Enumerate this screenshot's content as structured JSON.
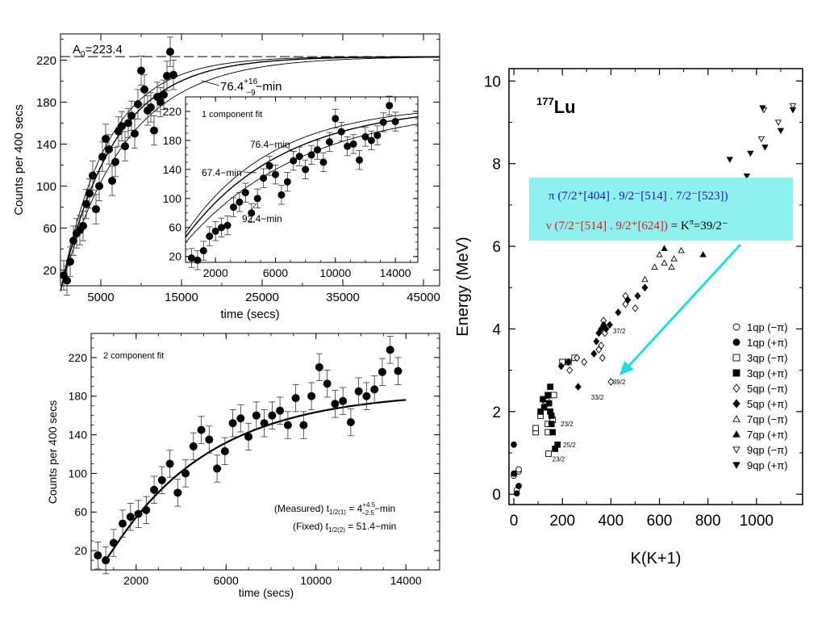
{
  "chart_data": [
    {
      "id": "top-left",
      "type": "scatter",
      "xlabel": "time (secs)",
      "ylabel": "Counts per 400 secs",
      "xlim": [
        0,
        47000
      ],
      "ylim": [
        5,
        245
      ],
      "xticks": [
        5000,
        15000,
        25000,
        35000,
        45000
      ],
      "yticks": [
        20,
        60,
        100,
        140,
        180,
        220
      ],
      "a0_label": "A",
      "a0_sub": "0",
      "a0_value": "=223.4",
      "a0": 223.4,
      "halflife_label": "76.4",
      "halflife_sup": "+16",
      "halflife_sub": "−9",
      "halflife_unit": "−min",
      "curves_halflife_min": [
        67.4,
        76.4,
        92.4
      ],
      "points": [
        [
          400,
          15
        ],
        [
          800,
          10
        ],
        [
          1200,
          28
        ],
        [
          1600,
          48
        ],
        [
          2000,
          55
        ],
        [
          2400,
          58
        ],
        [
          2800,
          62
        ],
        [
          3200,
          83
        ],
        [
          3600,
          93
        ],
        [
          4000,
          110
        ],
        [
          4400,
          78
        ],
        [
          4800,
          100
        ],
        [
          5200,
          128
        ],
        [
          5600,
          145
        ],
        [
          6000,
          135
        ],
        [
          6400,
          105
        ],
        [
          6800,
          123
        ],
        [
          7200,
          152
        ],
        [
          7600,
          157
        ],
        [
          8000,
          138
        ],
        [
          8400,
          160
        ],
        [
          8800,
          167
        ],
        [
          9200,
          150
        ],
        [
          9600,
          178
        ],
        [
          10000,
          210
        ],
        [
          10400,
          192
        ],
        [
          10800,
          172
        ],
        [
          11200,
          175
        ],
        [
          11600,
          153
        ],
        [
          12000,
          185
        ],
        [
          12400,
          180
        ],
        [
          12800,
          187
        ],
        [
          13200,
          205
        ],
        [
          13600,
          228
        ],
        [
          14000,
          206
        ]
      ],
      "errors": 14
    },
    {
      "id": "inset",
      "type": "scatter",
      "title": "1 component fit",
      "xlim": [
        0,
        15500
      ],
      "ylim": [
        12,
        240
      ],
      "xticks": [
        2000,
        6000,
        10000,
        14000
      ],
      "yticks": [
        20,
        60,
        100,
        140,
        180,
        220
      ],
      "curve_labels": [
        "76.4−min",
        "67.4−min",
        "92.4−min"
      ],
      "curves_halflife_min": [
        67.4,
        76.4,
        92.4
      ],
      "points": [
        [
          400,
          18
        ],
        [
          800,
          15
        ],
        [
          1200,
          28
        ],
        [
          1600,
          48
        ],
        [
          2000,
          55
        ],
        [
          2400,
          60
        ],
        [
          2800,
          63
        ],
        [
          3200,
          88
        ],
        [
          3600,
          95
        ],
        [
          4000,
          108
        ],
        [
          4400,
          80
        ],
        [
          4800,
          100
        ],
        [
          5200,
          128
        ],
        [
          5600,
          145
        ],
        [
          6000,
          133
        ],
        [
          6400,
          105
        ],
        [
          6800,
          123
        ],
        [
          7200,
          152
        ],
        [
          7600,
          158
        ],
        [
          8000,
          140
        ],
        [
          8400,
          160
        ],
        [
          8800,
          167
        ],
        [
          9200,
          150
        ],
        [
          9600,
          178
        ],
        [
          10000,
          210
        ],
        [
          10400,
          192
        ],
        [
          10800,
          172
        ],
        [
          11200,
          175
        ],
        [
          11600,
          153
        ],
        [
          12000,
          185
        ],
        [
          12400,
          180
        ],
        [
          12800,
          187
        ],
        [
          13200,
          205
        ],
        [
          13600,
          228
        ],
        [
          14000,
          206
        ]
      ],
      "errors": 13
    },
    {
      "id": "bottom-left",
      "type": "scatter",
      "title": "2 component fit",
      "xlabel": "time (secs)",
      "ylabel": "Counts per 400 secs",
      "xlim": [
        0,
        15500
      ],
      "ylim": [
        0,
        245
      ],
      "xticks": [
        2000,
        6000,
        10000,
        14000
      ],
      "yticks": [
        20,
        60,
        100,
        140,
        180,
        220
      ],
      "note1_prefix": "(Measured) t",
      "note1_sub": "1/2(1)",
      "note1_eq": " = 4",
      "note1_sup": "+4.5",
      "note1_sub2": "−2.5",
      "note1_suffix": "−min",
      "note2_prefix": "(Fixed) t",
      "note2_sub": "1/2(2)",
      "note2_suffix": " = 51.4−min",
      "points": [
        [
          300,
          15
        ],
        [
          650,
          10
        ],
        [
          1000,
          28
        ],
        [
          1400,
          48
        ],
        [
          1750,
          55
        ],
        [
          2100,
          58
        ],
        [
          2450,
          62
        ],
        [
          2800,
          83
        ],
        [
          3150,
          93
        ],
        [
          3500,
          110
        ],
        [
          3850,
          80
        ],
        [
          4200,
          100
        ],
        [
          4550,
          128
        ],
        [
          4900,
          145
        ],
        [
          5250,
          135
        ],
        [
          5600,
          105
        ],
        [
          5950,
          123
        ],
        [
          6300,
          152
        ],
        [
          6650,
          157
        ],
        [
          7000,
          138
        ],
        [
          7350,
          160
        ],
        [
          7700,
          152
        ],
        [
          8050,
          160
        ],
        [
          8400,
          165
        ],
        [
          8750,
          150
        ],
        [
          9100,
          178
        ],
        [
          9450,
          150
        ],
        [
          9800,
          180
        ],
        [
          10150,
          210
        ],
        [
          10500,
          193
        ],
        [
          10850,
          172
        ],
        [
          11200,
          175
        ],
        [
          11550,
          153
        ],
        [
          11900,
          185
        ],
        [
          12250,
          180
        ],
        [
          12600,
          187
        ],
        [
          12950,
          205
        ],
        [
          13300,
          228
        ],
        [
          13650,
          206
        ]
      ],
      "errors": 14
    },
    {
      "id": "right",
      "type": "scatter",
      "title_sup": "177",
      "title": "Lu",
      "xlabel": "K(K+1)",
      "ylabel": "Energy (MeV)",
      "xlim": [
        -20,
        1190
      ],
      "ylim": [
        -0.25,
        10.3
      ],
      "xticks": [
        0,
        200,
        400,
        600,
        800,
        1000
      ],
      "yticks": [
        0,
        2,
        4,
        6,
        8,
        10
      ],
      "legend": [
        {
          "label": "1qp  (−π)",
          "marker": "circle-open"
        },
        {
          "label": "1qp  (+π)",
          "marker": "circle-filled"
        },
        {
          "label": "3qp  (−π)",
          "marker": "square-open"
        },
        {
          "label": "3qp  (+π)",
          "marker": "square-filled"
        },
        {
          "label": "5qp  (−π)",
          "marker": "diamond-open"
        },
        {
          "label": "5qp  (+π)",
          "marker": "diamond-filled"
        },
        {
          "label": "7qp  (−π)",
          "marker": "triangle-open"
        },
        {
          "label": "7qp  (+π)",
          "marker": "triangle-filled"
        },
        {
          "label": "9qp  (−π)",
          "marker": "triangle-down-open"
        },
        {
          "label": "9qp  (+π)",
          "marker": "triangle-down-filled"
        }
      ],
      "legend_position": "bottom-right",
      "box_line1": "π (7/2⁺[404] . 9/2⁻[514] . 7/2⁻[523])",
      "box_line2a": "ν (7/2⁻[514] . 9/2⁺[624])",
      "box_line2b": " = K",
      "box_line2c": "π",
      "box_line2d": "=39/2⁻",
      "box_color": "#8ff0f0",
      "arrow_color": "#22dddd",
      "annotations": [
        {
          "text": "23/2",
          "x": 180,
          "y": 1.7
        },
        {
          "text": "25/2",
          "x": 190,
          "y": 1.2
        },
        {
          "text": "23/2",
          "x": 145,
          "y": 0.85
        },
        {
          "text": "33/2",
          "x": 305,
          "y": 2.35
        },
        {
          "text": "39/2",
          "x": 395,
          "y": 2.72
        },
        {
          "text": "37/2",
          "x": 395,
          "y": 3.95
        }
      ],
      "series": [
        {
          "marker": "circle-open",
          "points": [
            [
              0,
              0.45
            ],
            [
              2,
              0.5
            ],
            [
              12,
              0.1
            ],
            [
              20,
              0.55
            ],
            [
              20,
              0.6
            ]
          ]
        },
        {
          "marker": "circle-filled",
          "points": [
            [
              0,
              0.5
            ],
            [
              0,
              1.2
            ],
            [
              12,
              0.02
            ],
            [
              20,
              0.2
            ]
          ]
        },
        {
          "marker": "square-open",
          "points": [
            [
              90,
              1.5
            ],
            [
              90,
              1.6
            ],
            [
              110,
              1.9
            ],
            [
              130,
              2.2
            ],
            [
              135,
              2.25
            ],
            [
              140,
              1.7
            ],
            [
              140,
              1.5
            ],
            [
              160,
              1.8
            ],
            [
              165,
              2.4
            ],
            [
              200,
              3.2
            ],
            [
              225,
              3.2
            ],
            [
              250,
              3.3
            ],
            [
              143,
              0.98
            ]
          ]
        },
        {
          "marker": "square-filled",
          "points": [
            [
              110,
              2.0
            ],
            [
              120,
              2.3
            ],
            [
              125,
              2.1
            ],
            [
              140,
              2.4
            ],
            [
              145,
              2.2
            ],
            [
              150,
              2.6
            ],
            [
              150,
              2.0
            ],
            [
              155,
              1.9
            ],
            [
              155,
              1.7
            ],
            [
              160,
              1.5
            ],
            [
              170,
              1.1
            ],
            [
              180,
              1.2
            ]
          ]
        },
        {
          "marker": "diamond-open",
          "points": [
            [
              230,
              3.0
            ],
            [
              260,
              3.3
            ],
            [
              290,
              3.2
            ],
            [
              350,
              3.5
            ],
            [
              360,
              3.6
            ],
            [
              365,
              3.3
            ],
            [
              370,
              4.2
            ],
            [
              375,
              3.9
            ],
            [
              400,
              2.72
            ],
            [
              460,
              4.6
            ],
            [
              460,
              4.8
            ],
            [
              500,
              4.5
            ]
          ]
        },
        {
          "marker": "diamond-filled",
          "points": [
            [
              195,
              3.1
            ],
            [
              225,
              3.2
            ],
            [
              265,
              2.6
            ],
            [
              330,
              3.4
            ],
            [
              340,
              3.7
            ],
            [
              350,
              3.9
            ],
            [
              360,
              4.0
            ],
            [
              370,
              4.1
            ],
            [
              380,
              4.0
            ],
            [
              395,
              4.1
            ],
            [
              430,
              4.4
            ],
            [
              470,
              4.7
            ],
            [
              510,
              4.8
            ],
            [
              540,
              5.0
            ]
          ]
        },
        {
          "marker": "triangle-open",
          "points": [
            [
              540,
              5.2
            ],
            [
              580,
              5.5
            ],
            [
              600,
              5.8
            ],
            [
              620,
              5.6
            ],
            [
              650,
              5.5
            ],
            [
              660,
              5.7
            ],
            [
              690,
              5.9
            ]
          ]
        },
        {
          "marker": "triangle-filled",
          "points": [
            [
              620,
              5.95
            ],
            [
              780,
              5.8
            ]
          ]
        },
        {
          "marker": "triangle-down-open",
          "points": [
            [
              860,
              7.6
            ],
            [
              1020,
              8.6
            ],
            [
              1030,
              9.3
            ],
            [
              1090,
              9.0
            ],
            [
              1150,
              9.4
            ]
          ]
        },
        {
          "marker": "triangle-down-filled",
          "points": [
            [
              890,
              8.1
            ],
            [
              960,
              7.7
            ],
            [
              975,
              8.25
            ],
            [
              1025,
              9.35
            ],
            [
              1035,
              8.4
            ],
            [
              1100,
              8.8
            ],
            [
              1150,
              9.3
            ]
          ]
        }
      ]
    }
  ]
}
